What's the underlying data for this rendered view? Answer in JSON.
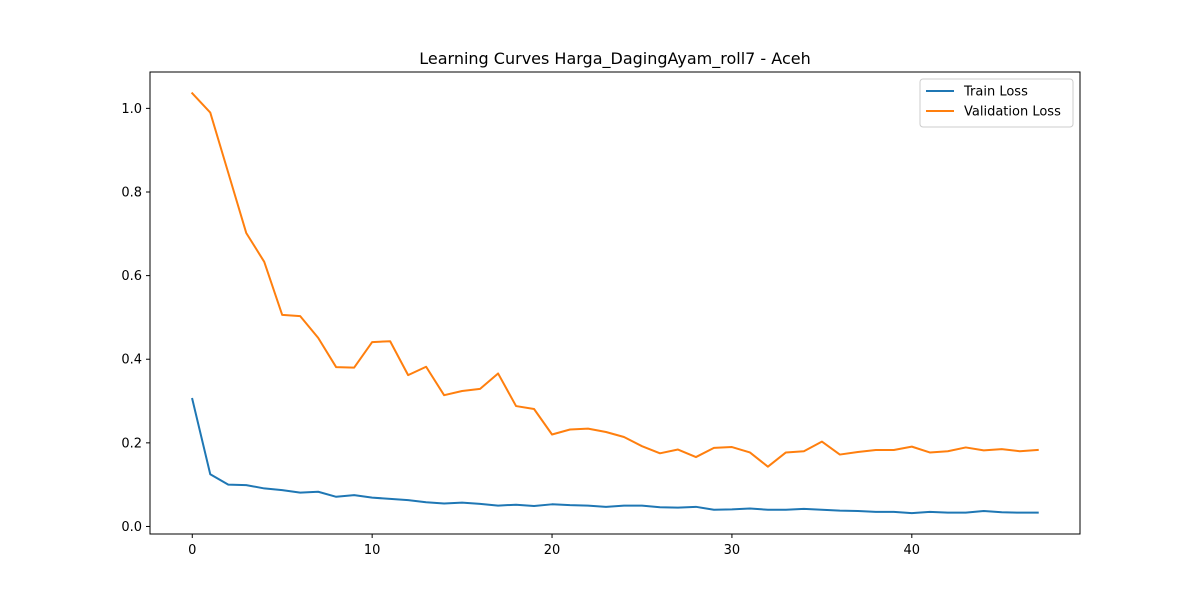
{
  "chart_data": {
    "type": "line",
    "title": "Learning Curves Harga_DagingAyam_roll7 - Aceh",
    "xlabel": "",
    "ylabel": "",
    "xlim": [
      -2.35,
      49.35
    ],
    "ylim": [
      -0.018,
      1.087
    ],
    "xticks": [
      0,
      10,
      20,
      30,
      40
    ],
    "xtick_labels": [
      "0",
      "10",
      "20",
      "30",
      "40"
    ],
    "yticks": [
      0.0,
      0.2,
      0.4,
      0.6,
      0.8,
      1.0
    ],
    "ytick_labels": [
      "0.0",
      "0.2",
      "0.4",
      "0.6",
      "0.8",
      "1.0"
    ],
    "grid": false,
    "legend_position": "top-right",
    "x": [
      0,
      1,
      2,
      3,
      4,
      5,
      6,
      7,
      8,
      9,
      10,
      11,
      12,
      13,
      14,
      15,
      16,
      17,
      18,
      19,
      20,
      21,
      22,
      23,
      24,
      25,
      26,
      27,
      28,
      29,
      30,
      31,
      32,
      33,
      34,
      35,
      36,
      37,
      38,
      39,
      40,
      41,
      42,
      43,
      44,
      45,
      46,
      47
    ],
    "series": [
      {
        "name": "Train Loss",
        "color": "#1f77b4",
        "values": [
          0.305,
          0.125,
          0.1,
          0.099,
          0.091,
          0.087,
          0.081,
          0.083,
          0.071,
          0.075,
          0.069,
          0.066,
          0.063,
          0.058,
          0.055,
          0.057,
          0.054,
          0.05,
          0.052,
          0.049,
          0.053,
          0.051,
          0.05,
          0.047,
          0.05,
          0.05,
          0.046,
          0.045,
          0.047,
          0.04,
          0.041,
          0.043,
          0.04,
          0.04,
          0.042,
          0.04,
          0.038,
          0.037,
          0.035,
          0.035,
          0.032,
          0.035,
          0.033,
          0.033,
          0.037,
          0.034,
          0.033,
          0.033
        ]
      },
      {
        "name": "Validation Loss",
        "color": "#ff7f0e",
        "values": [
          1.036,
          0.99,
          0.846,
          0.702,
          0.633,
          0.506,
          0.503,
          0.451,
          0.381,
          0.38,
          0.441,
          0.443,
          0.362,
          0.382,
          0.314,
          0.324,
          0.329,
          0.366,
          0.288,
          0.281,
          0.22,
          0.232,
          0.234,
          0.226,
          0.214,
          0.192,
          0.175,
          0.184,
          0.166,
          0.188,
          0.19,
          0.177,
          0.143,
          0.177,
          0.18,
          0.203,
          0.172,
          0.178,
          0.183,
          0.183,
          0.191,
          0.177,
          0.18,
          0.189,
          0.182,
          0.185,
          0.18,
          0.183
        ]
      }
    ]
  }
}
